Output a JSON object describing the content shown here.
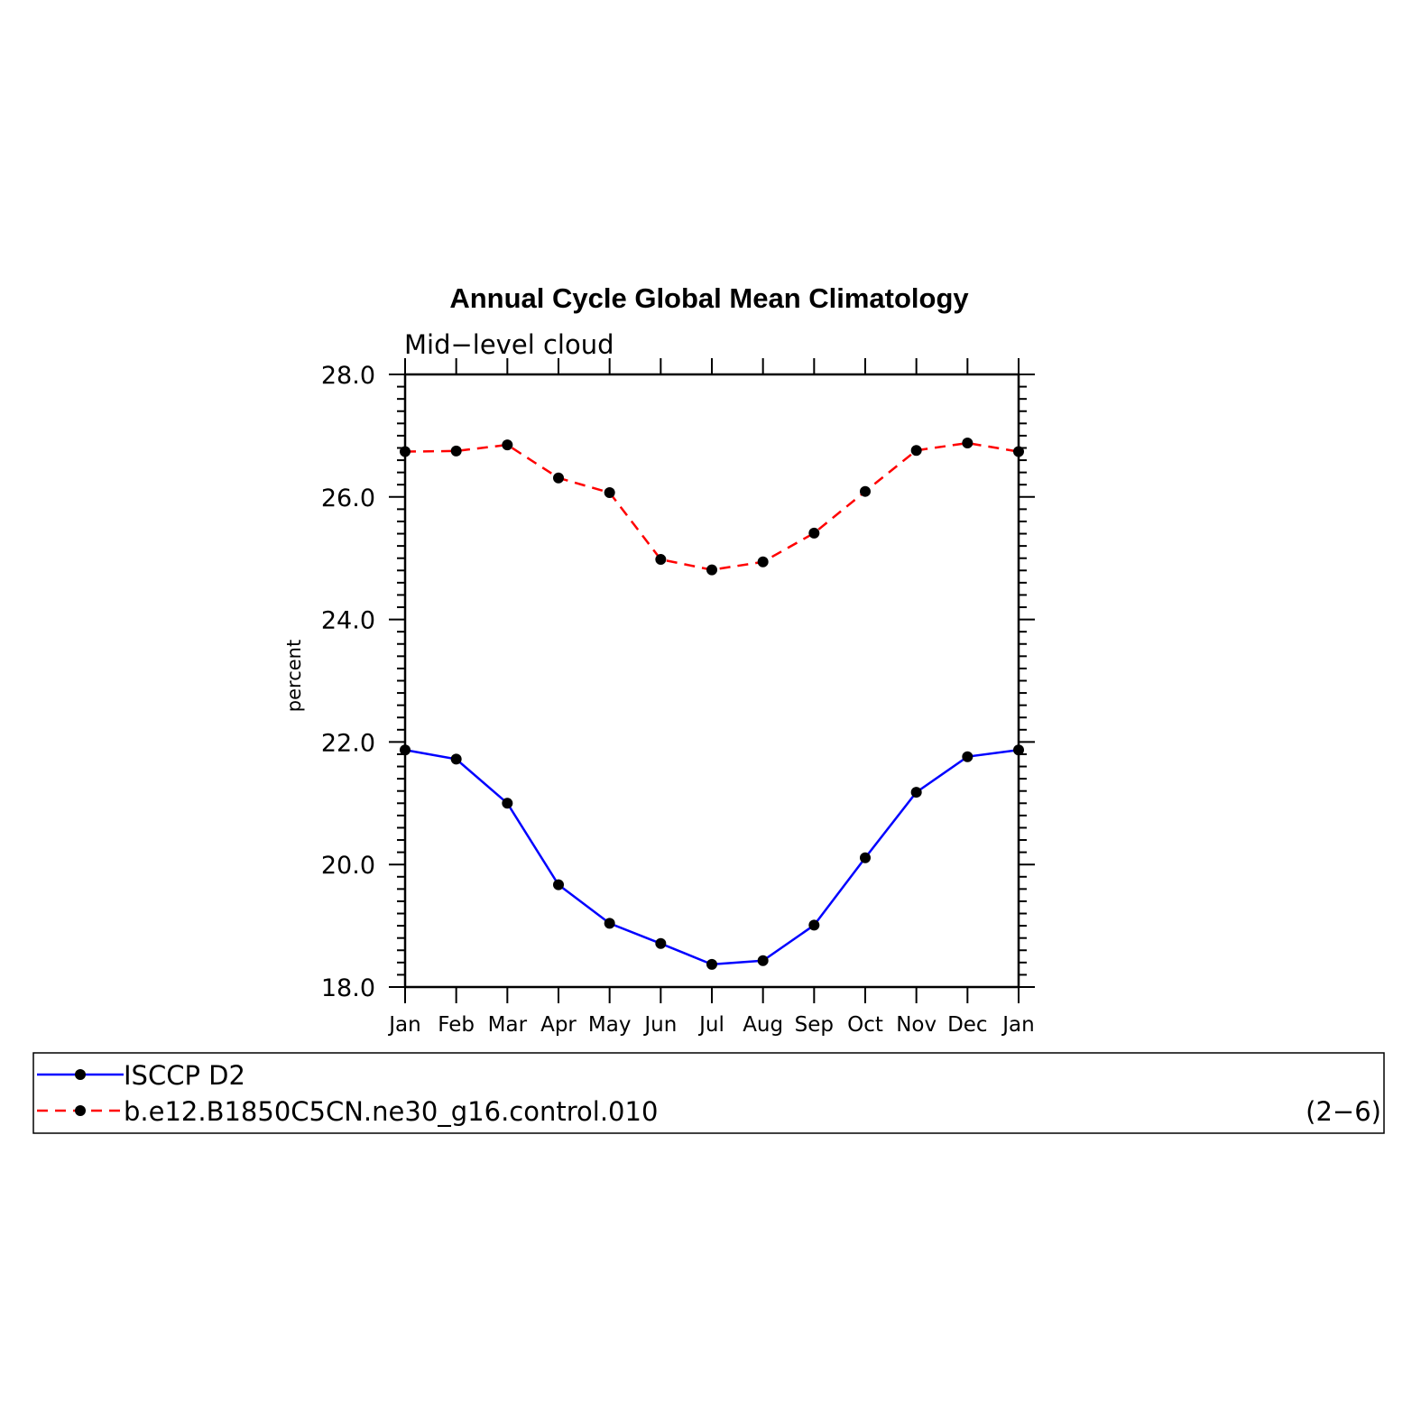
{
  "chart_data": {
    "type": "line",
    "title": "Annual Cycle Global Mean Climatology",
    "subtitle": "Mid−level cloud",
    "ylabel": "percent",
    "xlabel": "",
    "categories": [
      "Jan",
      "Feb",
      "Mar",
      "Apr",
      "May",
      "Jun",
      "Jul",
      "Aug",
      "Sep",
      "Oct",
      "Nov",
      "Dec",
      "Jan"
    ],
    "ylim": [
      18.0,
      28.0
    ],
    "yticks": [
      "18.0",
      "20.0",
      "22.0",
      "24.0",
      "26.0",
      "28.0"
    ],
    "ytick_values": [
      18,
      20,
      22,
      24,
      26,
      28
    ],
    "grid": false,
    "legend_position": "bottom",
    "panel_label": "(2−6)",
    "series": [
      {
        "name": "ISCCP D2",
        "color": "#0000ff",
        "dash": "solid",
        "values": [
          21.87,
          21.72,
          21.0,
          19.67,
          19.04,
          18.71,
          18.37,
          18.43,
          19.01,
          20.11,
          21.18,
          21.76,
          21.87
        ]
      },
      {
        "name": "b.e12.B1850C5CN.ne30_g16.control.010",
        "color": "#ff0000",
        "dash": "dashed",
        "values": [
          26.74,
          26.75,
          26.85,
          26.31,
          26.07,
          24.98,
          24.81,
          24.94,
          25.41,
          26.09,
          26.76,
          26.88,
          26.74
        ]
      }
    ]
  }
}
